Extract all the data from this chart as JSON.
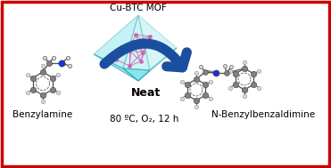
{
  "border_color": "#cc0000",
  "bg_color": "#ffffff",
  "text_benzylamine": "Benzylamine",
  "text_product": "N-Benzylbenzaldimine",
  "text_mof": "Cu-BTC MOF",
  "text_conditions": "80 ºC, O₂, 12 h",
  "text_neat": "Neat",
  "atom_carbon_color": "#808080",
  "atom_nitrogen_color": "#1a35d4",
  "atom_hydrogen_color": "#d8d8d8",
  "arrow_color": "#1a4fa0",
  "crystal_face_color": "#50d8e0",
  "crystal_alpha": 0.6,
  "mof_line_color": "#d060b0",
  "bond_color": "#505050",
  "label_fontsize": 7.5,
  "cond_fontsize": 7.5,
  "neat_fontsize": 9
}
